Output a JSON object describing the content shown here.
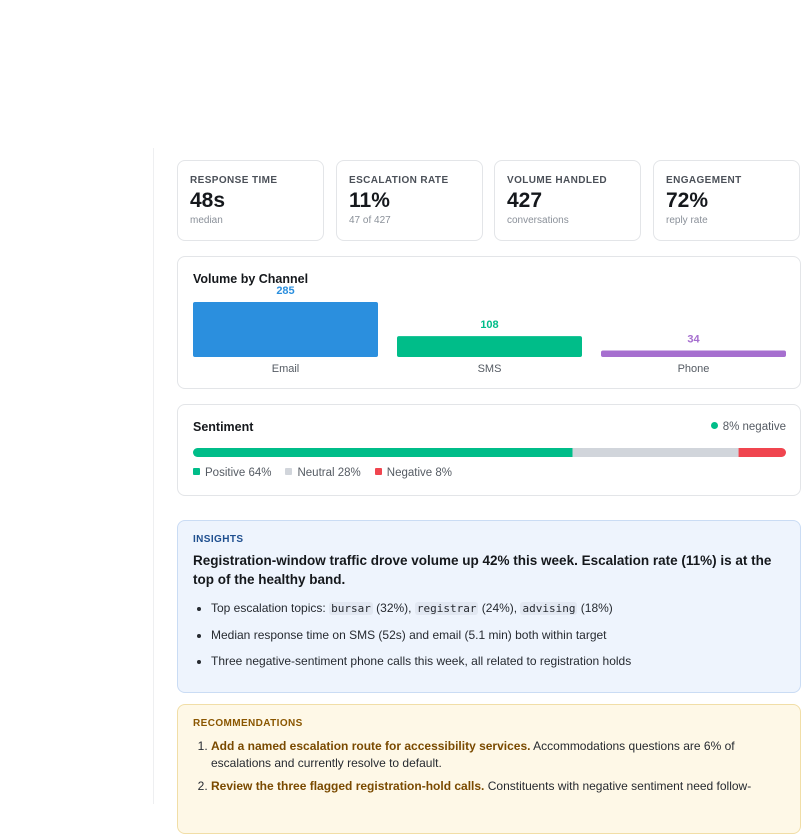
{
  "kpis": [
    {
      "label": "RESPONSE TIME",
      "value": "48s",
      "sub": "median"
    },
    {
      "label": "ESCALATION RATE",
      "value": "11%",
      "sub": "47 of 427"
    },
    {
      "label": "VOLUME HANDLED",
      "value": "427",
      "sub": "conversations"
    },
    {
      "label": "ENGAGEMENT",
      "value": "72%",
      "sub": "reply rate"
    }
  ],
  "chart_data": {
    "type": "bar",
    "title": "Volume by Channel",
    "categories": [
      "Email",
      "SMS",
      "Phone"
    ],
    "values": [
      285,
      108,
      34
    ],
    "colors": [
      "#2b8fde",
      "#00bd89",
      "#a66fcf"
    ]
  },
  "sentiment": {
    "title": "Sentiment",
    "badge": "8% negative",
    "badge_color": "#00bd89",
    "segments": [
      {
        "label": "Positive 64%",
        "value": 64,
        "color": "#00bd89"
      },
      {
        "label": "Neutral 28%",
        "value": 28,
        "color": "#d1d5db"
      },
      {
        "label": "Negative 8%",
        "value": 8,
        "color": "#f0454f"
      }
    ]
  },
  "insights": {
    "heading": "INSIGHTS",
    "headline": "Registration-window traffic drove volume up 42% this week. Escalation rate (11%) is at the top of the healthy band.",
    "items": [
      [
        {
          "text": "Top escalation topics: "
        },
        {
          "code": "bursar"
        },
        {
          "text": " (32%), "
        },
        {
          "code": "registrar"
        },
        {
          "text": " (24%), "
        },
        {
          "code": "advising"
        },
        {
          "text": " (18%)"
        }
      ],
      [
        {
          "text": "Median response time on SMS (52s) and email (5.1 min) both within target"
        }
      ],
      [
        {
          "text": "Three negative-sentiment phone calls this week, all related to registration holds"
        }
      ]
    ]
  },
  "recommendations": {
    "heading": "RECOMMENDATIONS",
    "items": [
      {
        "title": "Add a named escalation route for accessibility services.",
        "text": " Accommodations questions are 6% of escalations and currently resolve to default."
      },
      {
        "title": "Review the three flagged registration-hold calls.",
        "text": " Constituents with negative sentiment need follow-"
      }
    ]
  }
}
